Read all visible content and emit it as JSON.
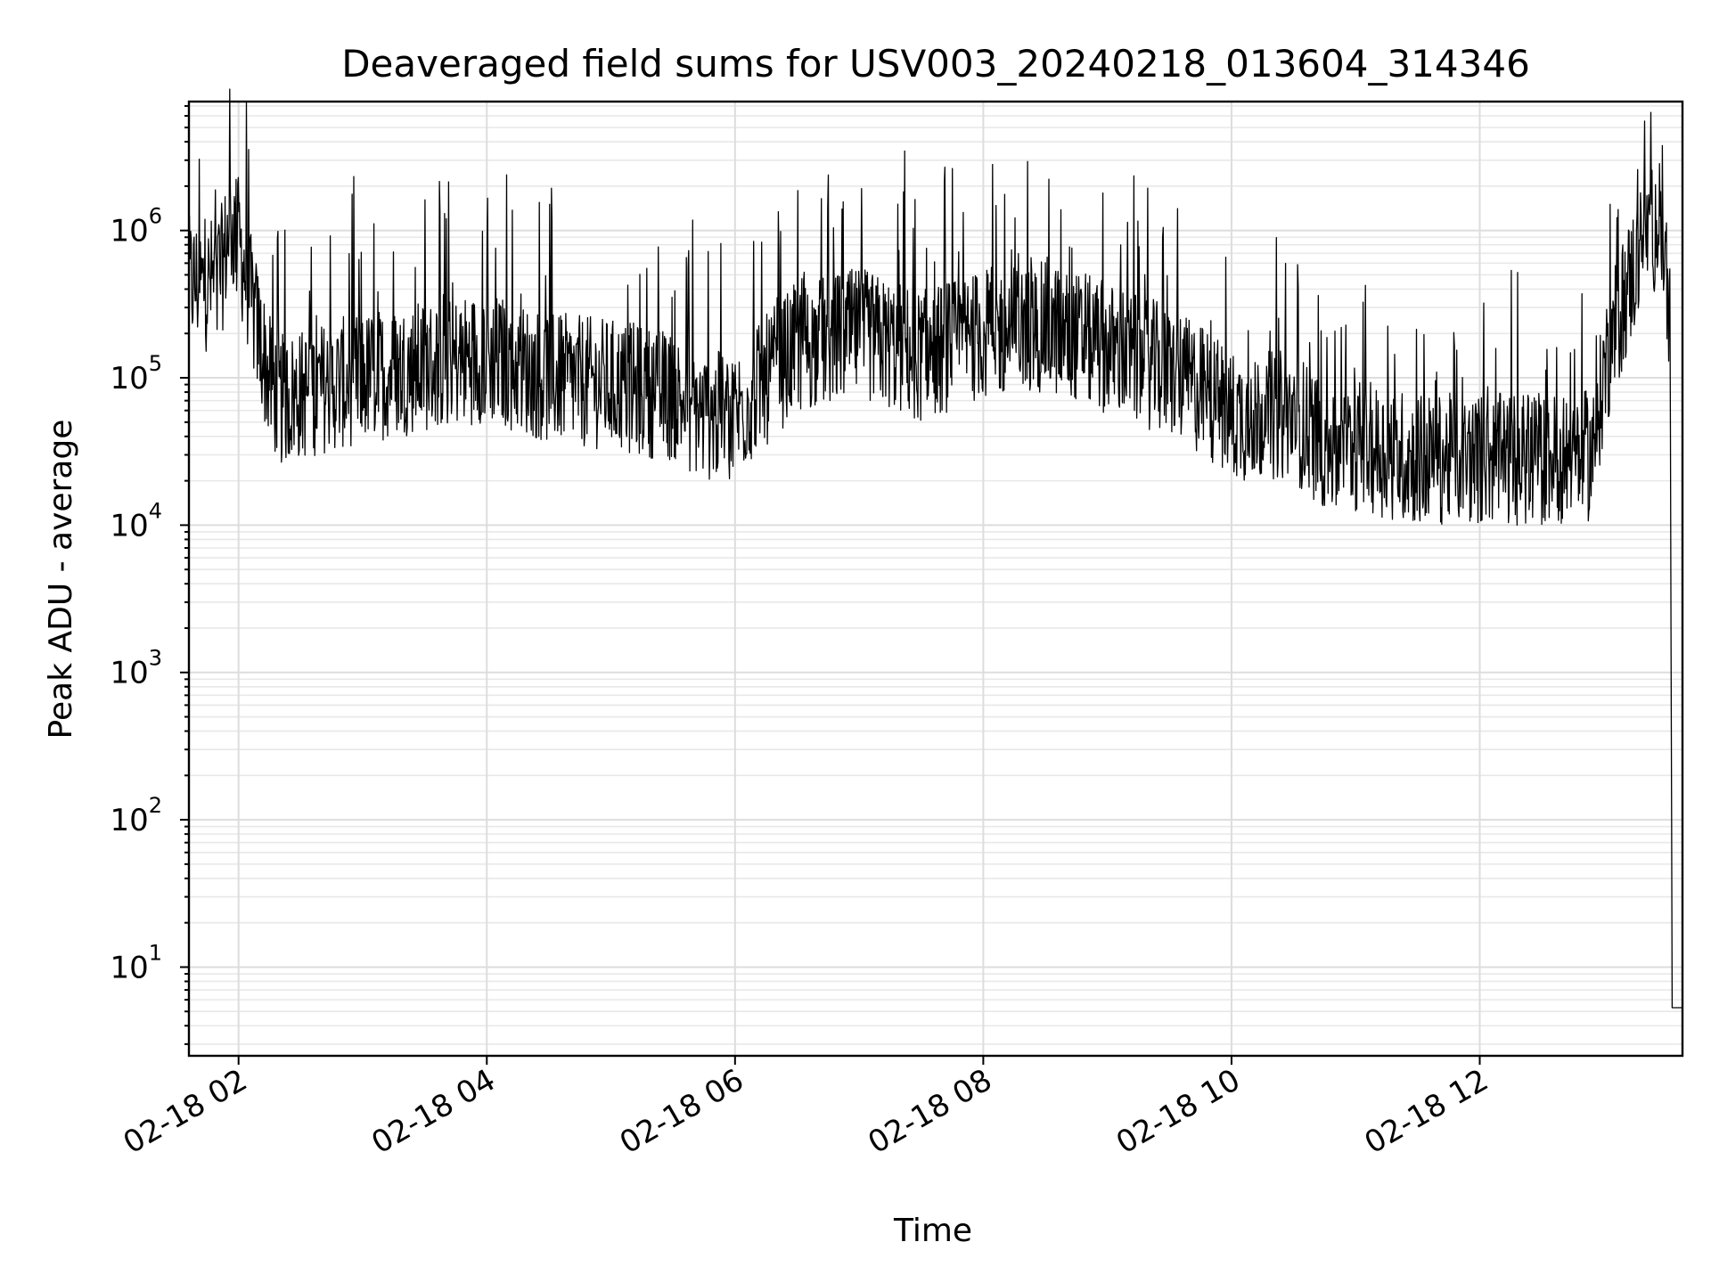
{
  "chart_data": {
    "type": "line",
    "title": "Deaveraged field sums for USV003_20240218_013604_314346",
    "xlabel": "Time",
    "ylabel": "Peak ADU - average",
    "yscale": "log",
    "ylim": [
      2.5,
      7500000
    ],
    "xlim": [
      "2024-02-18 01:36",
      "2024-02-18 13:38"
    ],
    "grid": "major and minor",
    "legend": "none",
    "x_ticks": [
      {
        "value": "2024-02-18 02:00",
        "label": "02-18 02"
      },
      {
        "value": "2024-02-18 04:00",
        "label": "02-18 04"
      },
      {
        "value": "2024-02-18 06:00",
        "label": "02-18 06"
      },
      {
        "value": "2024-02-18 08:00",
        "label": "02-18 08"
      },
      {
        "value": "2024-02-18 10:00",
        "label": "02-18 10"
      },
      {
        "value": "2024-02-18 12:00",
        "label": "02-18 12"
      }
    ],
    "y_ticks": [
      {
        "value": 10,
        "base": "10",
        "exp": "1"
      },
      {
        "value": 100,
        "base": "10",
        "exp": "2"
      },
      {
        "value": 1000,
        "base": "10",
        "exp": "3"
      },
      {
        "value": 10000,
        "base": "10",
        "exp": "4"
      },
      {
        "value": 100000,
        "base": "10",
        "exp": "5"
      },
      {
        "value": 1000000,
        "base": "10",
        "exp": "6"
      }
    ],
    "series": [
      {
        "color": "#000000",
        "x": [
          "2024-02-18 01:36",
          "2024-02-18 01:45",
          "2024-02-18 01:52",
          "2024-02-18 01:56",
          "2024-02-18 02:00",
          "2024-02-18 02:08",
          "2024-02-18 02:15",
          "2024-02-18 02:20",
          "2024-02-18 02:40",
          "2024-02-18 03:00",
          "2024-02-18 03:30",
          "2024-02-18 04:00",
          "2024-02-18 04:30",
          "2024-02-18 05:00",
          "2024-02-18 05:30",
          "2024-02-18 05:45",
          "2024-02-18 06:00",
          "2024-02-18 06:10",
          "2024-02-18 06:30",
          "2024-02-18 07:00",
          "2024-02-18 07:30",
          "2024-02-18 08:00",
          "2024-02-18 08:30",
          "2024-02-18 09:00",
          "2024-02-18 09:30",
          "2024-02-18 09:50",
          "2024-02-18 10:00",
          "2024-02-18 10:30",
          "2024-02-18 10:50",
          "2024-02-18 11:00",
          "2024-02-18 11:30",
          "2024-02-18 12:00",
          "2024-02-18 12:30",
          "2024-02-18 12:55",
          "2024-02-18 13:00",
          "2024-02-18 13:10",
          "2024-02-18 13:20",
          "2024-02-18 13:27",
          "2024-02-18 13:30",
          "2024-02-18 13:32",
          "2024-02-18 13:33",
          "2024-02-18 13:38"
        ],
        "y": [
          450000,
          420000,
          550000,
          1100000,
          850000,
          250000,
          95000,
          70000,
          85000,
          100000,
          120000,
          140000,
          100000,
          90000,
          75000,
          55000,
          55000,
          80000,
          160000,
          200000,
          140000,
          200000,
          220000,
          160000,
          110000,
          75000,
          55000,
          55000,
          30000,
          35000,
          28000,
          28000,
          28000,
          30000,
          110000,
          350000,
          900000,
          1200000,
          600000,
          250000,
          5.3,
          5.3
        ]
      }
    ]
  }
}
